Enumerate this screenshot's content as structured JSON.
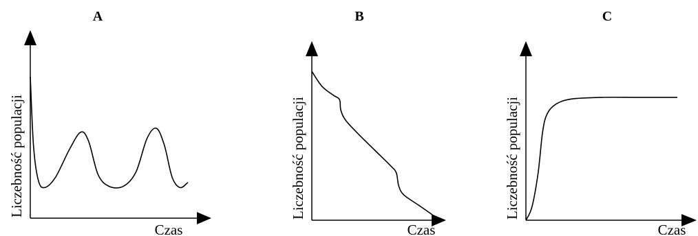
{
  "chart_data": [
    {
      "type": "line",
      "title": "A",
      "xlabel": "Czas",
      "ylabel": "Liczebność populacji",
      "x_ticks": false,
      "y_ticks": false,
      "grid": false,
      "series": [
        {
          "values_normalized": [
            [
              0.0,
              0.98
            ],
            [
              0.02,
              0.45
            ],
            [
              0.05,
              0.18
            ],
            [
              0.09,
              0.12
            ],
            [
              0.16,
              0.2
            ],
            [
              0.25,
              0.42
            ],
            [
              0.32,
              0.55
            ],
            [
              0.37,
              0.48
            ],
            [
              0.43,
              0.22
            ],
            [
              0.5,
              0.13
            ],
            [
              0.59,
              0.13
            ],
            [
              0.67,
              0.24
            ],
            [
              0.74,
              0.5
            ],
            [
              0.8,
              0.58
            ],
            [
              0.85,
              0.45
            ],
            [
              0.9,
              0.2
            ],
            [
              0.95,
              0.12
            ],
            [
              1.0,
              0.16
            ]
          ]
        }
      ]
    },
    {
      "type": "line",
      "title": "B",
      "xlabel": "Czas",
      "ylabel": "Liczebność populacji",
      "x_ticks": false,
      "y_ticks": false,
      "grid": false,
      "series": [
        {
          "values_normalized": [
            [
              0.0,
              1.0
            ],
            [
              0.08,
              0.9
            ],
            [
              0.17,
              0.84
            ],
            [
              0.22,
              0.81
            ],
            [
              0.23,
              0.74
            ],
            [
              0.27,
              0.67
            ],
            [
              0.38,
              0.57
            ],
            [
              0.5,
              0.47
            ],
            [
              0.62,
              0.37
            ],
            [
              0.67,
              0.32
            ],
            [
              0.69,
              0.23
            ],
            [
              0.73,
              0.17
            ],
            [
              0.85,
              0.1
            ],
            [
              0.95,
              0.04
            ],
            [
              1.0,
              0.0
            ]
          ]
        }
      ]
    },
    {
      "type": "line",
      "title": "C",
      "xlabel": "Czas",
      "ylabel": "Liczebność populacji",
      "x_ticks": false,
      "y_ticks": false,
      "grid": false,
      "series": [
        {
          "values_normalized": [
            [
              0.0,
              0.0
            ],
            [
              0.04,
              0.08
            ],
            [
              0.08,
              0.28
            ],
            [
              0.11,
              0.53
            ],
            [
              0.14,
              0.64
            ],
            [
              0.2,
              0.7
            ],
            [
              0.3,
              0.73
            ],
            [
              0.5,
              0.74
            ],
            [
              0.75,
              0.74
            ],
            [
              1.0,
              0.74
            ]
          ]
        }
      ]
    }
  ]
}
